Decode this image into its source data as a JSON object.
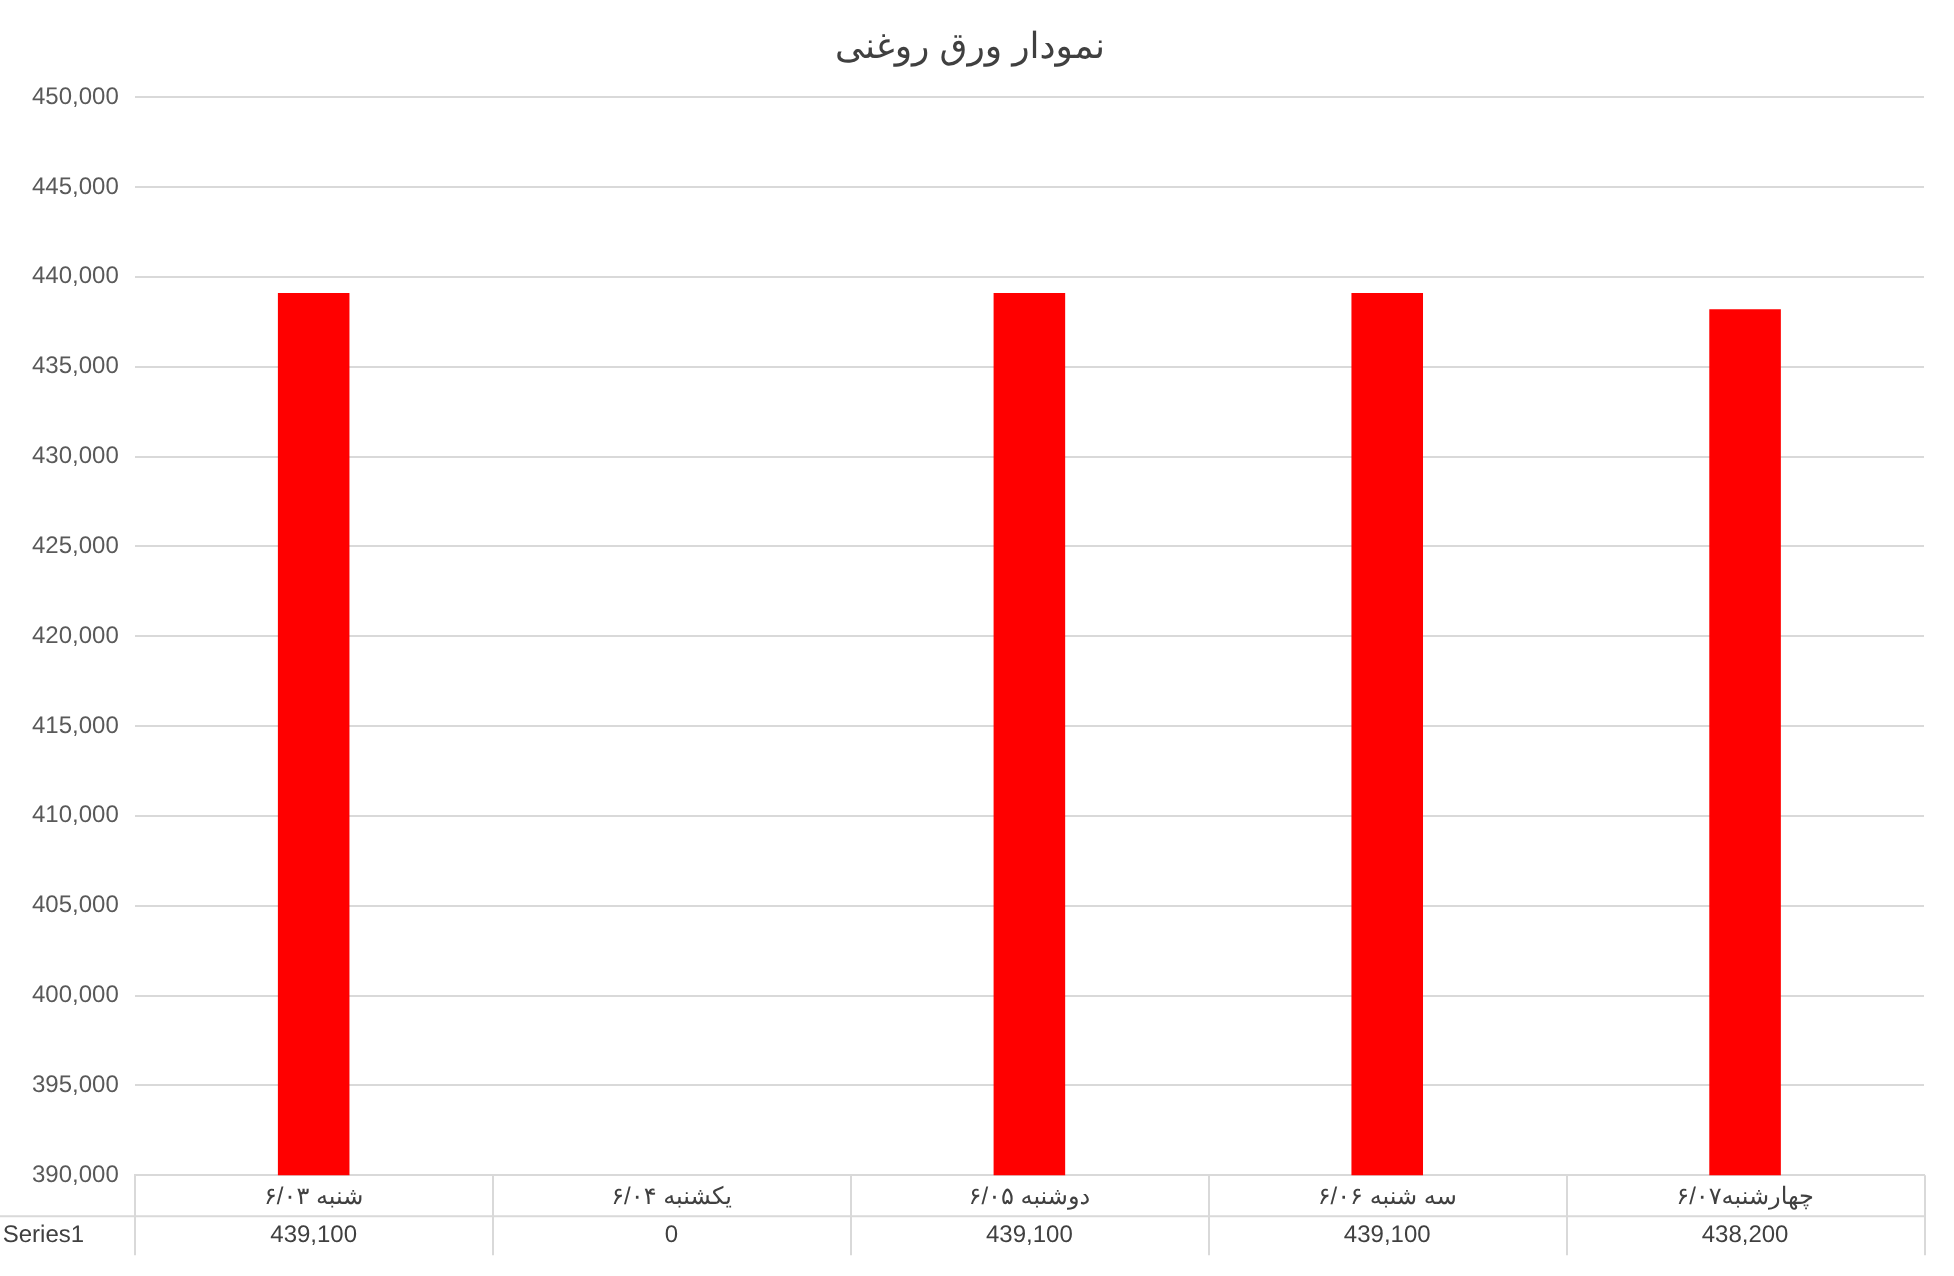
{
  "chart_data": {
    "type": "bar",
    "title": "نمودار ورق روغنی",
    "categories": [
      "شنبه ۶/۰۳",
      "یکشنبه ۶/۰۴",
      "دوشنبه ۶/۰۵",
      "سه شنبه ۶/۰۶",
      "چهارشنبه۶/۰۷"
    ],
    "series": [
      {
        "name": "Series1",
        "color": "#ff0000",
        "values": [
          439100,
          null,
          439100,
          439100,
          438200
        ],
        "value_labels": [
          "439,100",
          "0",
          "439,100",
          "439,100",
          "438,200"
        ]
      }
    ],
    "ylim": [
      390000,
      450000
    ],
    "yticks": [
      {
        "value": 390000,
        "label": "390,000"
      },
      {
        "value": 395000,
        "label": "395,000"
      },
      {
        "value": 400000,
        "label": "400,000"
      },
      {
        "value": 405000,
        "label": "405,000"
      },
      {
        "value": 410000,
        "label": "410,000"
      },
      {
        "value": 415000,
        "label": "415,000"
      },
      {
        "value": 420000,
        "label": "420,000"
      },
      {
        "value": 425000,
        "label": "425,000"
      },
      {
        "value": 430000,
        "label": "430,000"
      },
      {
        "value": 435000,
        "label": "435,000"
      },
      {
        "value": 440000,
        "label": "440,000"
      },
      {
        "value": 445000,
        "label": "445,000"
      },
      {
        "value": 450000,
        "label": "450,000"
      }
    ],
    "grid": "y",
    "legend": "bottom left"
  }
}
